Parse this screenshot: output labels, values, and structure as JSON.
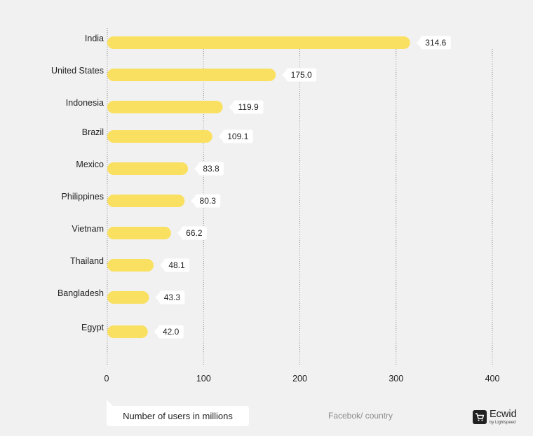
{
  "chart_data": {
    "type": "bar",
    "orientation": "horizontal",
    "categories": [
      "India",
      "United States",
      "Indonesia",
      "Brazil",
      "Mexico",
      "Philippines",
      "Vietnam",
      "Thailand",
      "Bangladesh",
      "Egypt"
    ],
    "values": [
      314.6,
      175.0,
      119.9,
      109.1,
      83.8,
      80.3,
      66.2,
      48.1,
      43.3,
      42.0
    ],
    "value_labels": [
      "314.6",
      "175.0",
      "119.9",
      "109.1",
      "83.8",
      "80.3",
      "66.2",
      "48.1",
      "43.3",
      "42.0"
    ],
    "xticks": [
      "0",
      "100",
      "200",
      "300",
      "400"
    ],
    "xlim": [
      0,
      400
    ],
    "xlabel": "Number of users in millions",
    "grid": "vertical dotted",
    "bar_color": "#fae061"
  },
  "footer": {
    "axis_caption": "Number of users in millions",
    "source": "Facebok/ country",
    "brand_name": "Ecwid",
    "brand_sub": "by Lightspeed"
  }
}
